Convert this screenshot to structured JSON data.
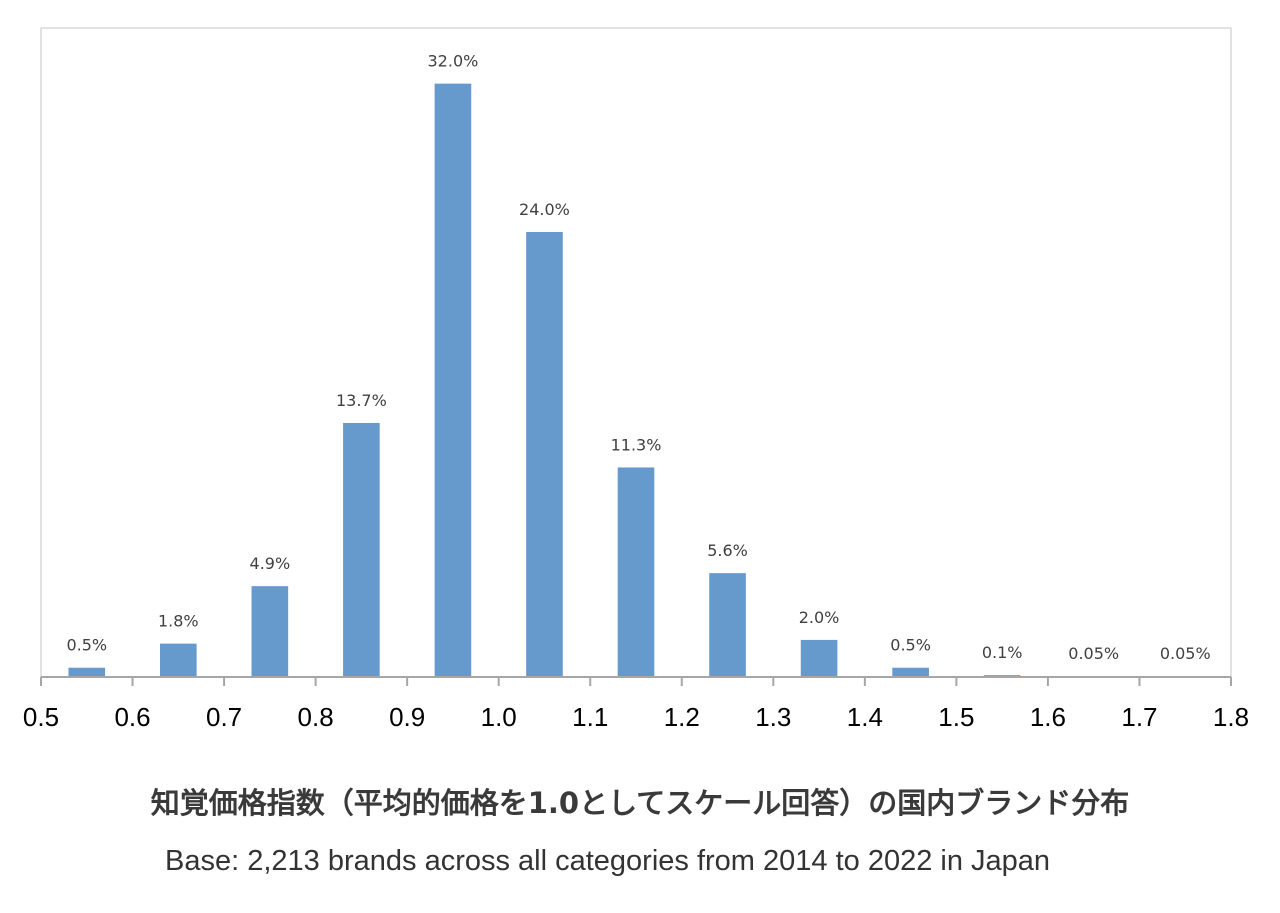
{
  "caption": {
    "title": "知覚価格指数（平均的価格を1.0としてスケール回答）の国内ブランド分布",
    "base": "Base: 2,213 brands across all categories from 2014 to 2022 in Japan"
  },
  "colors": {
    "bar": "#6699cc",
    "axis": "#a6a6a6",
    "plot_border": "#d9d9d9",
    "data_label": "#404040",
    "tick_label": "#000000"
  },
  "chart_data": {
    "type": "bar",
    "title": "",
    "xlabel": "",
    "ylabel": "",
    "x_ticks": [
      "0.5",
      "0.6",
      "0.7",
      "0.8",
      "0.9",
      "1.0",
      "1.1",
      "1.2",
      "1.3",
      "1.4",
      "1.5",
      "1.6",
      "1.7",
      "1.8"
    ],
    "bin_edges": [
      0.5,
      0.6,
      0.7,
      0.8,
      0.9,
      1.0,
      1.1,
      1.2,
      1.3,
      1.4,
      1.5,
      1.6,
      1.7,
      1.8
    ],
    "values": [
      0.5,
      1.8,
      4.9,
      13.7,
      32.0,
      24.0,
      11.3,
      5.6,
      2.0,
      0.5,
      0.1,
      0.05,
      0.05
    ],
    "labels": [
      "0.5%",
      "1.8%",
      "4.9%",
      "13.7%",
      "32.0%",
      "24.0%",
      "11.3%",
      "5.6%",
      "2.0%",
      "0.5%",
      "0.1%",
      "0.05%",
      "0.05%"
    ],
    "ylim": [
      0,
      35
    ],
    "grid": false,
    "legend": "none"
  }
}
